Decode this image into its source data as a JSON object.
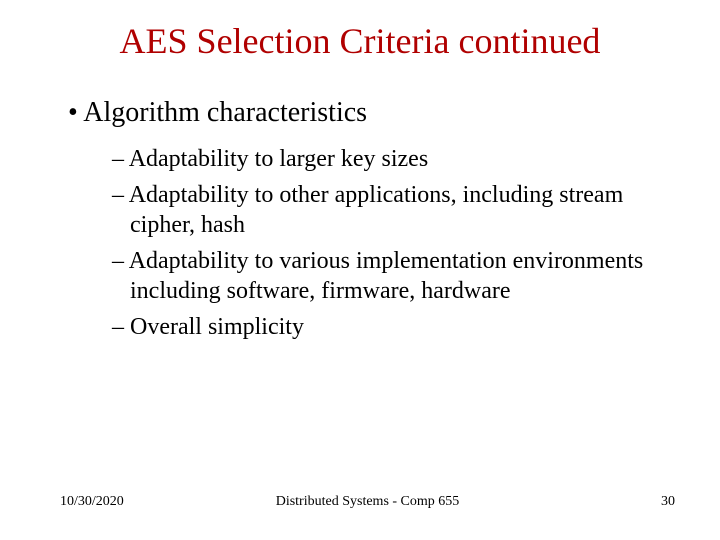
{
  "title": "AES Selection Criteria continued",
  "title_color": "#b00000",
  "title_fontsize": 36,
  "body_fontsize_l1": 28,
  "body_fontsize_l2": 24,
  "background_color": "#ffffff",
  "text_color": "#000000",
  "bullets": {
    "level1": [
      "Algorithm characteristics"
    ],
    "level2": [
      "Adaptability to larger key sizes",
      "Adaptability to other applications, including stream cipher, hash",
      "Adaptability to various implementation environments including software, firmware, hardware",
      "Overall simplicity"
    ]
  },
  "footer": {
    "date": "10/30/2020",
    "center": "Distributed Systems - Comp 655",
    "page": "30"
  }
}
